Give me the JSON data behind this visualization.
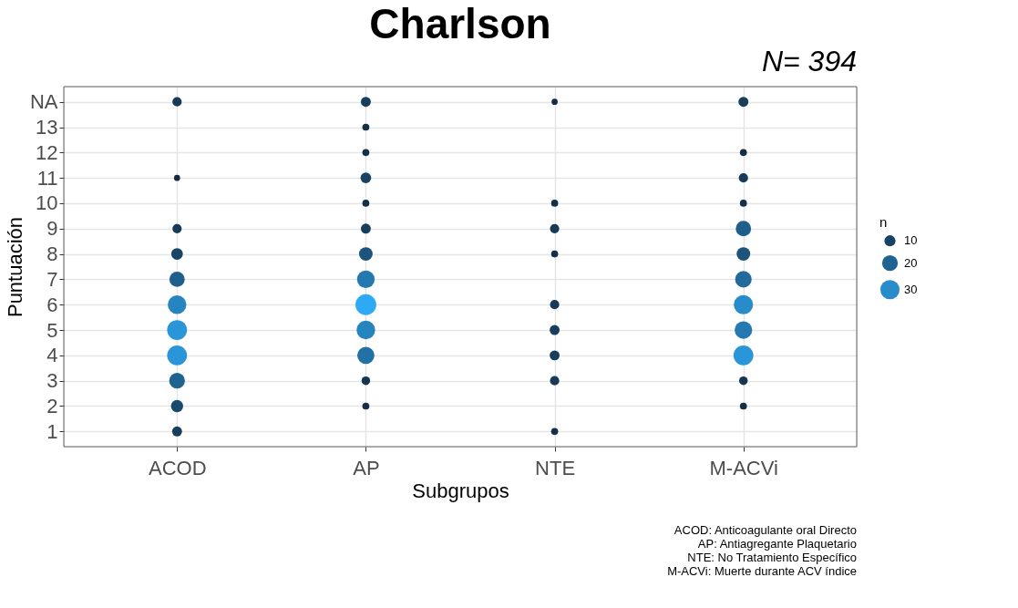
{
  "chart_data": {
    "type": "bubble",
    "title": "Charlson",
    "subtitle": "N= 394",
    "xlabel": "Subgrupos",
    "ylabel": "Puntuación",
    "legend_title": "n",
    "grid": true,
    "categories": [
      "ACOD",
      "AP",
      "NTE",
      "M-ACVi"
    ],
    "ylim": [
      0.4,
      14.6
    ],
    "yticks": [
      1,
      2,
      3,
      4,
      5,
      6,
      7,
      8,
      9,
      10,
      11,
      12,
      13,
      {
        "value": 14,
        "label": "NA"
      }
    ],
    "size_legend": [
      10,
      20,
      30
    ],
    "series": [
      {
        "x": [
          "ACOD",
          "ACOD",
          "ACOD",
          "ACOD",
          "ACOD",
          "ACOD",
          "ACOD",
          "ACOD",
          "ACOD",
          "ACOD",
          "ACOD"
        ],
        "values": [
          14,
          11,
          9,
          8,
          7,
          6,
          5,
          4,
          3,
          2,
          1
        ],
        "sizes": [
          7,
          3,
          7,
          11,
          19,
          28,
          32,
          32,
          20,
          12,
          8
        ],
        "colors": [
          "#163a58",
          "#132b43",
          "#163a58",
          "#194567",
          "#1e5f8c",
          "#2684bf",
          "#2a96d9",
          "#2a96d9",
          "#1f6391",
          "#19496c",
          "#173e5d"
        ]
      },
      {
        "x": [
          "AP",
          "AP",
          "AP",
          "AP",
          "AP",
          "AP",
          "AP",
          "AP",
          "AP",
          "AP",
          "AP",
          "AP",
          "AP"
        ],
        "values": [
          14,
          13,
          12,
          11,
          10,
          9,
          8,
          7,
          6,
          5,
          4,
          3,
          2
        ],
        "sizes": [
          8,
          4,
          4,
          9,
          4,
          8,
          15,
          25,
          35,
          28,
          24,
          6,
          4
        ],
        "colors": [
          "#173e5d",
          "#142f48",
          "#142f48",
          "#184162",
          "#142f48",
          "#173e5d",
          "#1c547c",
          "#2479b0",
          "#2ea9f3",
          "#2684bf",
          "#2271a5",
          "#153652",
          "#142f48"
        ]
      },
      {
        "x": [
          "NTE",
          "NTE",
          "NTE",
          "NTE",
          "NTE",
          "NTE",
          "NTE",
          "NTE",
          "NTE"
        ],
        "values": [
          14,
          10,
          9,
          8,
          6,
          5,
          4,
          3,
          1
        ],
        "sizes": [
          3,
          4,
          7,
          4,
          7,
          8,
          8,
          7,
          4
        ],
        "colors": [
          "#132b43",
          "#142f48",
          "#163a58",
          "#142f48",
          "#163a58",
          "#173e5d",
          "#173e5d",
          "#163a58",
          "#142f48"
        ]
      },
      {
        "x": [
          "M-ACVi",
          "M-ACVi",
          "M-ACVi",
          "M-ACVi",
          "M-ACVi",
          "M-ACVi",
          "M-ACVi",
          "M-ACVi",
          "M-ACVi",
          "M-ACVi",
          "M-ACVi",
          "M-ACVi"
        ],
        "values": [
          14,
          12,
          11,
          10,
          9,
          8,
          7,
          6,
          5,
          4,
          3,
          2
        ],
        "sizes": [
          8,
          4,
          7,
          4,
          19,
          15,
          22,
          30,
          25,
          32,
          6,
          4
        ],
        "colors": [
          "#173e5d",
          "#142f48",
          "#163a58",
          "#142f48",
          "#1e5f8c",
          "#1c547c",
          "#216a9b",
          "#288bca",
          "#2479b0",
          "#2a96d9",
          "#153652",
          "#142f48"
        ]
      }
    ],
    "annotations": [
      "ACOD: Anticoagulante oral Directo",
      "AP: Antiagregante Plaquetario",
      "NTE: No Tratamiento Específico ",
      "M-ACVi: Muerte durante ACV índice"
    ]
  }
}
